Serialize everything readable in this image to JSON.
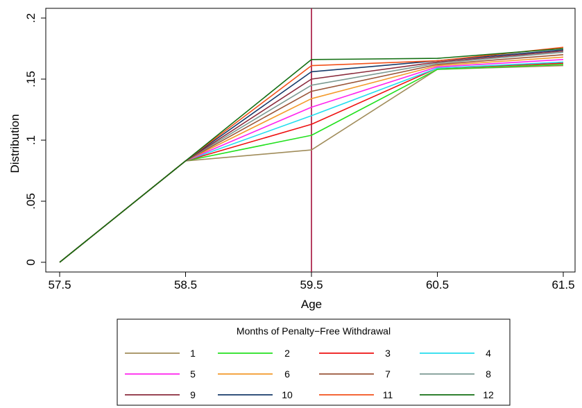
{
  "chart_data": {
    "type": "line",
    "xlabel": "Age",
    "ylabel": "Distribution",
    "xlim": [
      57.5,
      61.5
    ],
    "ylim": [
      0,
      0.2
    ],
    "x": [
      57.5,
      58.5,
      59.5,
      60.5,
      61.5
    ],
    "x_tick_labels": [
      "57.5",
      "58.5",
      "59.5",
      "60.5",
      "61.5"
    ],
    "y_ticks": [
      0,
      0.05,
      0.1,
      0.15,
      0.2
    ],
    "y_tick_labels": [
      "0",
      ".05",
      ".1",
      ".15",
      ".2"
    ],
    "grid": false,
    "vertical_reference_line": {
      "x": 59.5,
      "color": "#a3103a"
    },
    "legend": {
      "title": "Months of Penalty−Free Withdrawal",
      "placement": "bottom",
      "columns": 4
    },
    "series": [
      {
        "name": "1",
        "color": "#a08c5a",
        "values": [
          0,
          0.083,
          0.092,
          0.158,
          0.161
        ]
      },
      {
        "name": "2",
        "color": "#22e01e",
        "values": [
          0,
          0.083,
          0.104,
          0.158,
          0.162
        ]
      },
      {
        "name": "3",
        "color": "#ee1111",
        "values": [
          0,
          0.083,
          0.113,
          0.159,
          0.163
        ]
      },
      {
        "name": "4",
        "color": "#22ddee",
        "values": [
          0,
          0.083,
          0.12,
          0.159,
          0.164
        ]
      },
      {
        "name": "5",
        "color": "#ff22ee",
        "values": [
          0,
          0.083,
          0.127,
          0.16,
          0.166
        ]
      },
      {
        "name": "6",
        "color": "#f39a2a",
        "values": [
          0,
          0.083,
          0.134,
          0.161,
          0.168
        ]
      },
      {
        "name": "7",
        "color": "#9a5538",
        "values": [
          0,
          0.083,
          0.14,
          0.162,
          0.17
        ]
      },
      {
        "name": "8",
        "color": "#7c9a92",
        "values": [
          0,
          0.083,
          0.145,
          0.163,
          0.172
        ]
      },
      {
        "name": "9",
        "color": "#8a2a3c",
        "values": [
          0,
          0.083,
          0.15,
          0.164,
          0.173
        ]
      },
      {
        "name": "10",
        "color": "#163a6a",
        "values": [
          0,
          0.083,
          0.156,
          0.165,
          0.174
        ]
      },
      {
        "name": "11",
        "color": "#f2501a",
        "values": [
          0,
          0.083,
          0.161,
          0.165,
          0.176
        ]
      },
      {
        "name": "12",
        "color": "#126e12",
        "values": [
          0,
          0.083,
          0.166,
          0.167,
          0.175
        ]
      }
    ]
  }
}
